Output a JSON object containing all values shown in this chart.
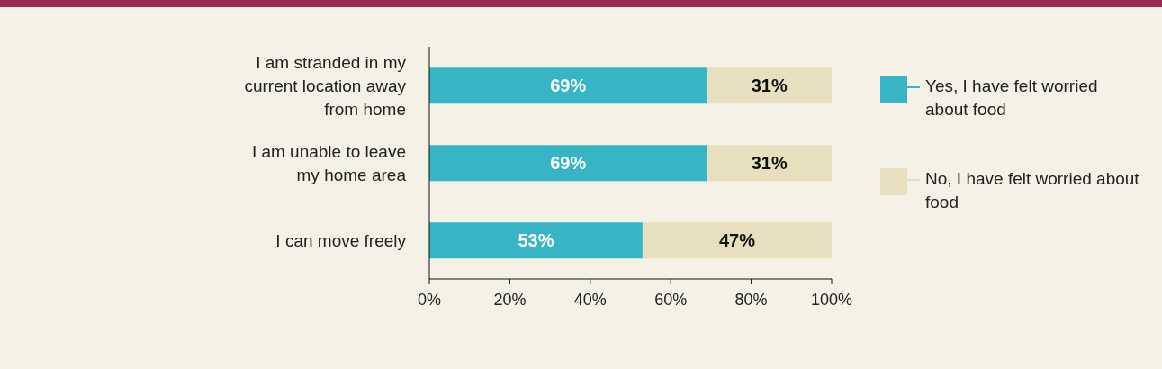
{
  "chart_data": {
    "type": "bar",
    "orientation": "horizontal",
    "stacked": true,
    "categories": [
      "I am stranded in my current location away from home",
      "I am unable to leave my home area",
      "I can move freely"
    ],
    "series": [
      {
        "name": "Yes, I have felt worried about food",
        "color": "#38b5c5",
        "values": [
          69,
          69,
          53
        ],
        "value_labels": [
          "69%",
          "69%",
          "53%"
        ]
      },
      {
        "name": "No, I have felt worried about food",
        "color": "#e8dfc0",
        "values": [
          31,
          31,
          47
        ],
        "value_labels": [
          "31%",
          "31%",
          "47%"
        ]
      }
    ],
    "xlim": [
      0,
      100
    ],
    "xticks": [
      {
        "value": 0,
        "label": "0%"
      },
      {
        "value": 20,
        "label": "20%"
      },
      {
        "value": 40,
        "label": "40%"
      },
      {
        "value": 60,
        "label": "60%"
      },
      {
        "value": 80,
        "label": "80%"
      },
      {
        "value": 100,
        "label": "100%"
      }
    ],
    "legend": "right"
  }
}
